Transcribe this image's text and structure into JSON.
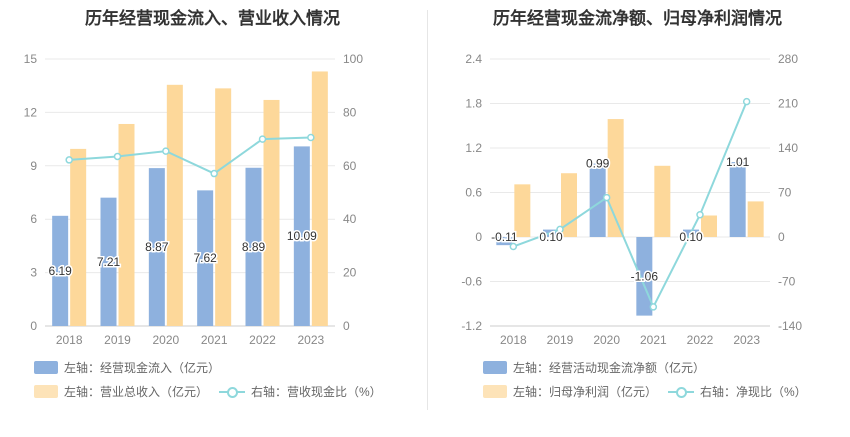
{
  "colors": {
    "bar_blue": "#8eb1de",
    "bar_orange": "#fdd89a",
    "line": "#8ed8dc",
    "grid": "#e9e9e9",
    "axis_text": "#888888"
  },
  "chart_data": [
    {
      "type": "bar",
      "title": "历年经营现金流入、营业收入情况",
      "categories": [
        "2018",
        "2019",
        "2020",
        "2021",
        "2022",
        "2023"
      ],
      "left_axis": {
        "min": 0,
        "max": 15,
        "ticks": [
          "0",
          "3",
          "6",
          "9",
          "12",
          "15"
        ]
      },
      "right_axis": {
        "min": 0,
        "max": 100,
        "ticks": [
          "0",
          "20",
          "40",
          "60",
          "80",
          "100"
        ]
      },
      "series": [
        {
          "name": "左轴：经营现金流入（亿元）",
          "axis": "left",
          "kind": "bar",
          "values": [
            6.19,
            7.21,
            8.87,
            7.62,
            8.89,
            10.09
          ],
          "labels": [
            "6.19",
            "7.21",
            "8.87",
            "7.62",
            "8.89",
            "10.09"
          ]
        },
        {
          "name": "左轴：营业总收入（亿元）",
          "axis": "left",
          "kind": "bar",
          "values": [
            9.95,
            11.35,
            13.55,
            13.35,
            12.7,
            14.3
          ]
        },
        {
          "name": "右轴：营收现金比（%）",
          "axis": "right",
          "kind": "line",
          "values": [
            62.2,
            63.5,
            65.5,
            57.1,
            70.0,
            70.6
          ]
        }
      ],
      "grid": true,
      "legend_position": "bottom"
    },
    {
      "type": "bar",
      "title": "历年经营现金流净额、归母净利润情况",
      "categories": [
        "2018",
        "2019",
        "2020",
        "2021",
        "2022",
        "2023"
      ],
      "left_axis": {
        "min": -1.2,
        "max": 2.4,
        "ticks": [
          "-1.2",
          "-0.6",
          "0",
          "0.6",
          "1.2",
          "1.8",
          "2.4"
        ]
      },
      "right_axis": {
        "min": -140,
        "max": 280,
        "ticks": [
          "-140",
          "-70",
          "0",
          "70",
          "140",
          "210",
          "280"
        ]
      },
      "series": [
        {
          "name": "左轴：经营活动现金流净额（亿元）",
          "axis": "left",
          "kind": "bar",
          "values": [
            -0.11,
            0.1,
            0.99,
            -1.06,
            0.1,
            1.01
          ],
          "labels": [
            "-0.11",
            "0.10",
            "0.99",
            "-1.06",
            "0.10",
            "1.01"
          ]
        },
        {
          "name": "左轴：归母净利润（亿元）",
          "axis": "left",
          "kind": "bar",
          "values": [
            0.71,
            0.86,
            1.59,
            0.96,
            0.29,
            0.48
          ]
        },
        {
          "name": "右轴：净现比（%）",
          "axis": "right",
          "kind": "line",
          "values": [
            -15,
            12,
            62,
            -110,
            35,
            213
          ]
        }
      ],
      "grid": true,
      "legend_position": "bottom"
    }
  ]
}
